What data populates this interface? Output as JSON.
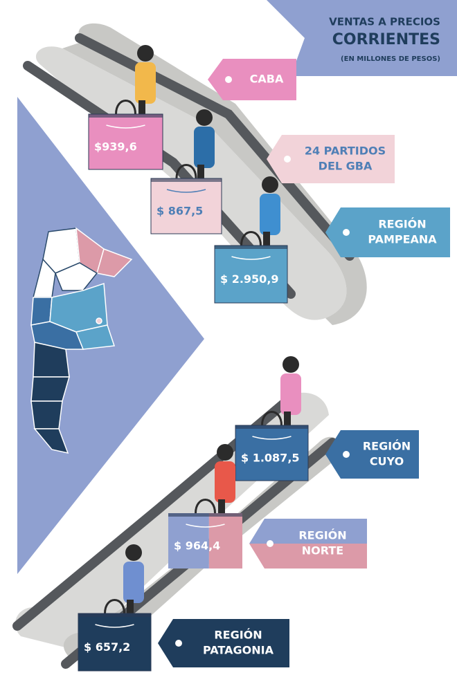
{
  "header": {
    "lines": [
      "VENTAS A PRECIOS",
      "CORRIENTES",
      "(EN MILLONES DE PESOS)"
    ]
  },
  "regions": [
    {
      "label": [
        "CABA"
      ],
      "value": "$939,6"
    },
    {
      "label": [
        "24 PARTIDOS",
        "DEL GBA"
      ],
      "value": "$ 867,5"
    },
    {
      "label": [
        "REGIÓN",
        "PAMPEANA"
      ],
      "value": "$ 2.950,9"
    },
    {
      "label": [
        "REGIÓN",
        "CUYO"
      ],
      "value": "$ 1.087,5"
    },
    {
      "label": [
        "REGIÓN",
        "NORTE"
      ],
      "value": "$ 964,4"
    },
    {
      "label": [
        "REGIÓN",
        "PATAGONIA"
      ],
      "value": "$ 657,2"
    }
  ]
}
